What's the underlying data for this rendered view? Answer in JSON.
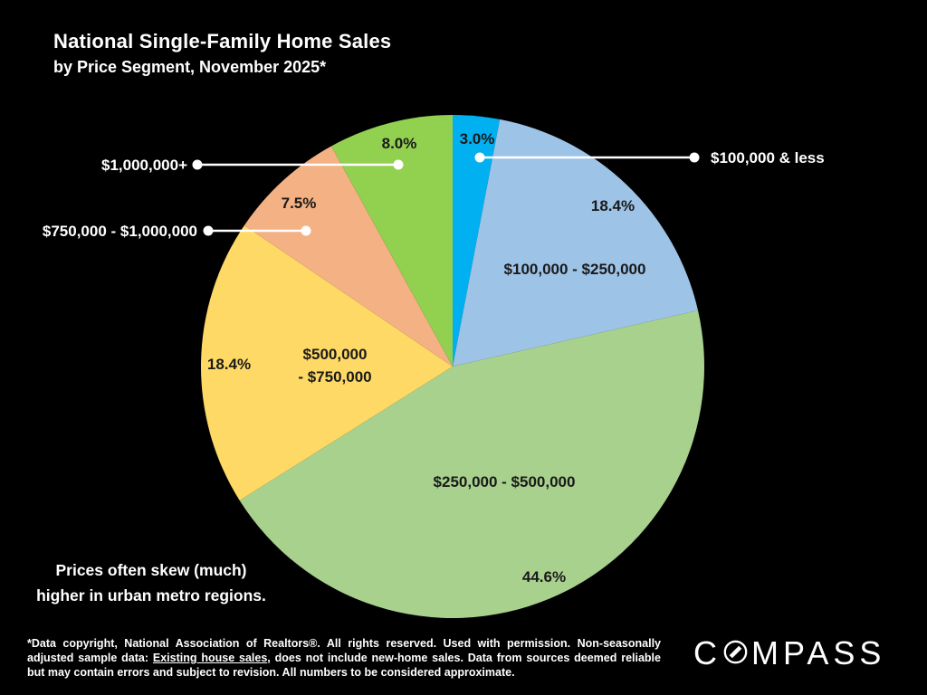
{
  "title": "National Single-Family Home Sales",
  "subtitle": "by Price Segment, November 2025*",
  "note": {
    "line1": "Prices often skew (much)",
    "line2": "higher in urban metro regions."
  },
  "footnote": {
    "part1": "*Data copyright, National Association of Realtors®. All rights reserved. Used with permission. Non-seasonally adjusted sample data: ",
    "underlined": "Existing house sales",
    "part2": ", does not include new-home sales. Data from sources deemed reliable but may contain errors and subject to revision. All numbers to be considered approximate."
  },
  "brand": {
    "name": "COMPASS",
    "logo_left": "C",
    "logo_right": "MPASS",
    "color": "#ffffff"
  },
  "colors": {
    "background": "#000000",
    "label_dark": "#1a1a1a",
    "label_light": "#ffffff",
    "leader_line": "#ffffff"
  },
  "chart_data": {
    "type": "pie",
    "title": "National Single-Family Home Sales by Price Segment, November 2025*",
    "unit": "percent of sales",
    "start_angle": "12 o'clock",
    "direction": "clockwise",
    "legend_position": "labels-on-chart",
    "slices": [
      {
        "segment": "$100,000 & less",
        "value": 3.0,
        "pct_label": "3.0%",
        "color": "#00B0F0",
        "label_style": "callout-right",
        "label_lines": []
      },
      {
        "segment": "$100,000 - $250,000",
        "value": 18.4,
        "pct_label": "18.4%",
        "color": "#9DC3E6",
        "label_style": "inside",
        "label_lines": [
          "$100,000 - $250,000"
        ]
      },
      {
        "segment": "$250,000 - $500,000",
        "value": 44.6,
        "pct_label": "44.6%",
        "color": "#A9D18E",
        "label_style": "inside",
        "label_lines": [
          "$250,000 - $500,000"
        ]
      },
      {
        "segment": "$500,000 - $750,000",
        "value": 18.4,
        "pct_label": "18.4%",
        "color": "#FFD966",
        "label_style": "inside",
        "label_lines": [
          "$500,000",
          "- $750,000"
        ]
      },
      {
        "segment": "$750,000 - $1,000,000",
        "value": 7.5,
        "pct_label": "7.5%",
        "color": "#F4B183",
        "label_style": "callout-left",
        "label_lines": []
      },
      {
        "segment": "$1,000,000+",
        "value": 8.0,
        "pct_label": "8.0%",
        "color": "#92D050",
        "label_style": "callout-left",
        "label_lines": []
      }
    ]
  }
}
